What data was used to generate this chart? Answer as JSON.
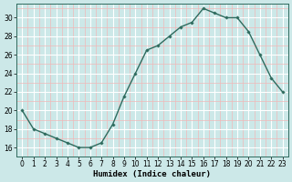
{
  "x": [
    0,
    1,
    2,
    3,
    4,
    5,
    6,
    7,
    8,
    9,
    10,
    11,
    12,
    13,
    14,
    15,
    16,
    17,
    18,
    19,
    20,
    21,
    22,
    23
  ],
  "y": [
    20,
    18,
    17.5,
    17,
    16.5,
    16,
    16,
    16.5,
    18.5,
    21.5,
    24,
    26.5,
    27,
    28,
    29,
    29.5,
    31,
    30.5,
    30,
    30,
    28.5,
    26,
    23.5,
    22
  ],
  "line_color": "#2e6b5e",
  "marker": "D",
  "marker_size": 1.8,
  "line_width": 1.0,
  "bg_color": "#cce8e8",
  "grid_white_color": "#ffffff",
  "grid_pink_color": "#f0b8b8",
  "xlabel": "Humidex (Indice chaleur)",
  "xlim": [
    -0.5,
    23.5
  ],
  "ylim": [
    15.0,
    31.5
  ],
  "yticks": [
    16,
    18,
    20,
    22,
    24,
    26,
    28,
    30
  ],
  "xticks": [
    0,
    1,
    2,
    3,
    4,
    5,
    6,
    7,
    8,
    9,
    10,
    11,
    12,
    13,
    14,
    15,
    16,
    17,
    18,
    19,
    20,
    21,
    22,
    23
  ],
  "xlabel_fontsize": 6.5,
  "tick_fontsize": 5.5
}
